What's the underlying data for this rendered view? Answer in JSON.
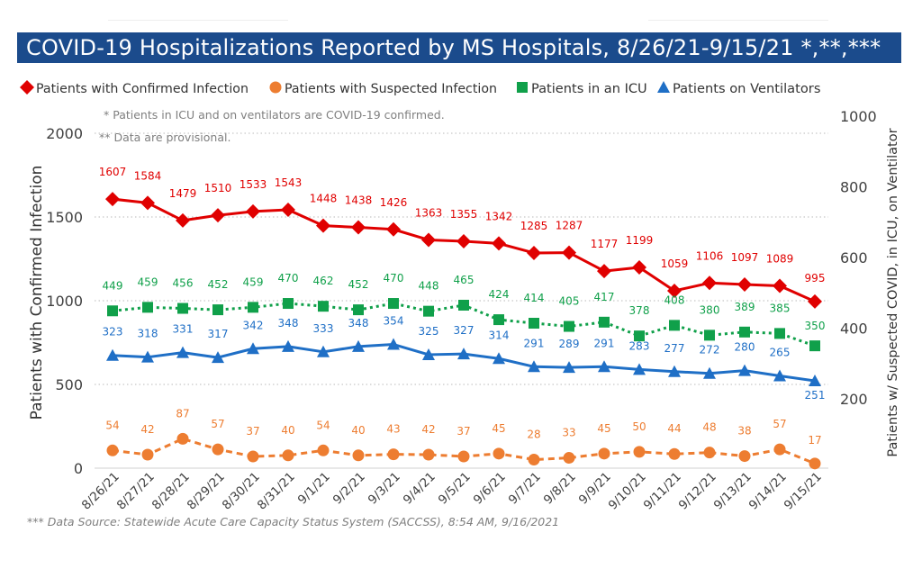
{
  "title": "COVID-19 Hospitalizations Reported by MS Hospitals, 8/26/21-9/15/21 *,**,***",
  "source_note": "*** Data Source: Statewide Acute Care Capacity Status System (SACCSS), 8:54 AM, 9/16/2021",
  "colors": {
    "title_bg": "#1b4b8c",
    "confirmed": "#e00000",
    "suspected": "#ed7d31",
    "icu": "#10a04a",
    "ventilator": "#1f6fc6"
  },
  "chart_data": {
    "type": "line",
    "notes": [
      "* Patients in ICU and on ventilators are COVID-19 confirmed.",
      "** Data are provisional."
    ],
    "ylabel_left": "Patients with Confirmed Infection",
    "ylabel_right": "Patients w/ Suspected COVID, in ICU, on Ventilator",
    "ylim_left": [
      0,
      2000
    ],
    "ylim_right": [
      0,
      1000
    ],
    "yticks_left": [
      "0",
      "500",
      "1000",
      "1500",
      "2000"
    ],
    "yticks_right": [
      "200",
      "400",
      "600",
      "800",
      "1000"
    ],
    "legend_position": "top",
    "categories": [
      "8/26/21",
      "8/27/21",
      "8/28/21",
      "8/29/21",
      "8/30/21",
      "8/31/21",
      "9/1/21",
      "9/2/21",
      "9/3/21",
      "9/4/21",
      "9/5/21",
      "9/6/21",
      "9/7/21",
      "9/8/21",
      "9/9/21",
      "9/10/21",
      "9/11/21",
      "9/12/21",
      "9/13/21",
      "9/14/21",
      "9/15/21"
    ],
    "series": [
      {
        "name": "Patients with Confirmed Infection",
        "axis": "left",
        "marker": "diamond",
        "dashed": false,
        "color": "#e00000",
        "values": [
          1607,
          1584,
          1479,
          1510,
          1533,
          1543,
          1448,
          1438,
          1426,
          1363,
          1355,
          1342,
          1285,
          1287,
          1177,
          1199,
          1059,
          1106,
          1097,
          1089,
          995
        ]
      },
      {
        "name": "Patients with Suspected Infection",
        "axis": "right",
        "marker": "circle",
        "dashed": true,
        "color": "#ed7d31",
        "values": [
          54,
          42,
          87,
          57,
          37,
          40,
          54,
          40,
          43,
          42,
          37,
          45,
          28,
          33,
          45,
          50,
          44,
          48,
          38,
          57,
          17
        ]
      },
      {
        "name": "Patients in an ICU",
        "axis": "right",
        "marker": "square",
        "dashed": true,
        "color": "#10a04a",
        "values": [
          449,
          459,
          456,
          452,
          459,
          470,
          462,
          452,
          470,
          448,
          465,
          424,
          414,
          405,
          417,
          378,
          408,
          380,
          389,
          385,
          350
        ]
      },
      {
        "name": "Patients on Ventilators",
        "axis": "right",
        "marker": "triangle",
        "dashed": false,
        "color": "#1f6fc6",
        "values": [
          323,
          318,
          331,
          317,
          342,
          348,
          333,
          348,
          354,
          325,
          327,
          314,
          291,
          289,
          291,
          283,
          277,
          272,
          280,
          265,
          251
        ]
      }
    ]
  }
}
